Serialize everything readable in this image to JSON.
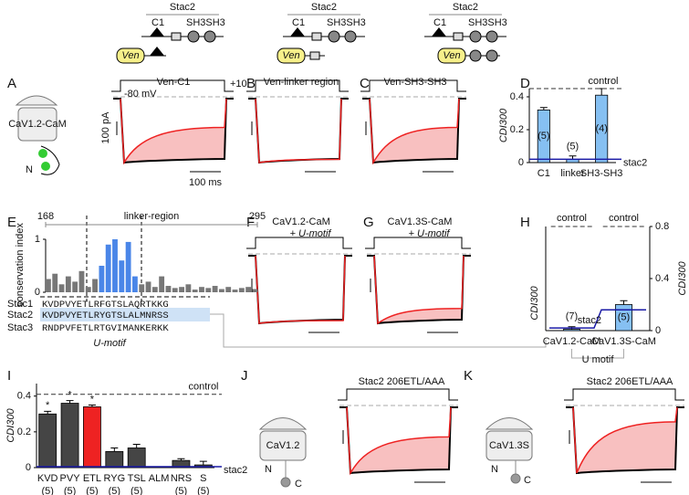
{
  "constructs": [
    {
      "title": "Stac2",
      "c1": "C1",
      "sh3": "SH3SH3",
      "ven": "Ven"
    },
    {
      "title": "Stac2",
      "c1": "C1",
      "sh3": "SH3SH3",
      "ven": "Ven"
    },
    {
      "title": "Stac2",
      "c1": "C1",
      "sh3": "SH3SH3",
      "ven": "Ven"
    }
  ],
  "panels": [
    "A",
    "B",
    "C",
    "D",
    "E",
    "F",
    "G",
    "H",
    "I",
    "J",
    "K"
  ],
  "traces": [
    {
      "title": "Ven-C1",
      "holding": "-80 mV",
      "step": "+10",
      "scale_current": "100 pA",
      "scale_time": "100 ms"
    },
    {
      "title": "Ven-linker region"
    },
    {
      "title": "Ven-SH3-SH3"
    },
    {
      "title": "CaV1.2-CaM",
      "subtitle": "+ U-motif"
    },
    {
      "title": "CaV1.3S-CaM",
      "subtitle": "+ U-motif"
    },
    {
      "title": "Stac2 206ETL/AAA"
    },
    {
      "title": "Stac2 206ETL/AAA"
    }
  ],
  "channels": {
    "A": "CaV1.2-CaM",
    "J": "CaV1.2",
    "K": "CaV1.3S",
    "n": "N",
    "c": "C"
  },
  "alignment": {
    "rows": [
      {
        "name": "Stac1",
        "seq": "KVDPVYETLRFGTSLAQRTKKG"
      },
      {
        "name": "Stac2",
        "seq": "KVDPVYETLRYGTSLALMNRSS"
      },
      {
        "name": "Stac3",
        "seq": "RNDPVFETLRTGVIMANKERKK"
      }
    ],
    "motif": "U-motif"
  },
  "chart_data": [
    {
      "type": "bar",
      "title": "linker-region",
      "ylabel": "conservation index",
      "xlim": [
        168,
        295
      ],
      "xticks": [
        168,
        295
      ],
      "ylim": [
        0,
        1
      ],
      "yticks": [
        0,
        1
      ],
      "color": "#777777",
      "highlight_color": "#4a86e8",
      "highlight_xlim": [
        198,
        222
      ],
      "x": [
        168,
        172,
        176,
        180,
        184,
        188,
        192,
        196,
        200,
        204,
        208,
        212,
        216,
        220,
        224,
        228,
        232,
        236,
        240,
        244,
        248,
        252,
        256,
        260,
        264,
        268,
        272,
        276,
        280,
        284,
        288,
        292
      ],
      "values": [
        0.25,
        0.35,
        0.15,
        0.3,
        0.2,
        0.4,
        0.1,
        0.25,
        0.5,
        0.9,
        1.0,
        0.6,
        0.95,
        0.3,
        0.15,
        0.2,
        0.1,
        0.3,
        0.12,
        0.08,
        0.1,
        0.15,
        0.05,
        0.1,
        0.08,
        0.12,
        0.06,
        0.1,
        0.05,
        0.08,
        0.1,
        0.06
      ]
    },
    {
      "type": "bar",
      "ylabel": "CDI300",
      "categories": [
        "C1",
        "linker",
        "SH3-SH3"
      ],
      "values": [
        0.32,
        0.02,
        0.41
      ],
      "errors": [
        0.015,
        0.02,
        0.04
      ],
      "n_labels": [
        "(5)",
        "(5)",
        "(4)"
      ],
      "color": "#86c0f2",
      "ylim": [
        0,
        0.45
      ],
      "yticks": [
        0,
        0.2,
        0.4
      ],
      "reference_lines": [
        {
          "label": "control",
          "value": 0.45,
          "color": "#333333",
          "dashed": true
        },
        {
          "label": "stac2",
          "value": 0.02,
          "color": "#1a1aa6",
          "dashed": false
        }
      ]
    },
    {
      "type": "bar",
      "ylabel": "CDI300",
      "xlabel": "U motif",
      "categories": [
        "CaV1.2-CaM",
        "CaV1.3S-CaM"
      ],
      "values": [
        0.01,
        0.2
      ],
      "errors": [
        0.02,
        0.03
      ],
      "n_labels": [
        "(7)",
        "(5)"
      ],
      "color": "#86c0f2",
      "ylim": [
        0,
        0.8
      ],
      "yticks": [
        0,
        0.4,
        0.8
      ],
      "reference_lines": [
        {
          "label": "control",
          "values": [
            0.8,
            0.8
          ],
          "color": "#333333",
          "dashed": true
        },
        {
          "label": "stac2",
          "values": [
            0.02,
            0.16
          ],
          "color": "#1a1aa6",
          "dashed": false
        }
      ]
    },
    {
      "type": "bar",
      "ylabel": "CDI300",
      "categories": [
        "KVD",
        "PVY",
        "ETL",
        "RYG",
        "TSL",
        "ALM",
        "NRS",
        "S"
      ],
      "values": [
        0.3,
        0.36,
        0.34,
        0.09,
        0.11,
        null,
        0.04,
        0.015
      ],
      "errors": [
        0.015,
        0.015,
        0.01,
        0.02,
        0.02,
        null,
        0.01,
        0.02
      ],
      "n_labels": [
        "(5)",
        "(5)",
        "(5)",
        "(5)",
        "(5)",
        null,
        "(5)",
        "(5)"
      ],
      "stars": [
        "*",
        "*",
        "*",
        null,
        null,
        null,
        null,
        null
      ],
      "colors": [
        "#454545",
        "#454545",
        "#ee2222",
        "#454545",
        "#454545",
        "#454545",
        "#454545",
        "#454545"
      ],
      "ylim": [
        0,
        0.47
      ],
      "yticks": [
        0,
        0.2,
        0.4
      ],
      "reference_lines": [
        {
          "label": "control",
          "value": 0.41,
          "color": "#333333",
          "dashed": true
        },
        {
          "label": "stac2",
          "value": 0.005,
          "color": "#1a1aa6",
          "dashed": false
        }
      ]
    }
  ]
}
